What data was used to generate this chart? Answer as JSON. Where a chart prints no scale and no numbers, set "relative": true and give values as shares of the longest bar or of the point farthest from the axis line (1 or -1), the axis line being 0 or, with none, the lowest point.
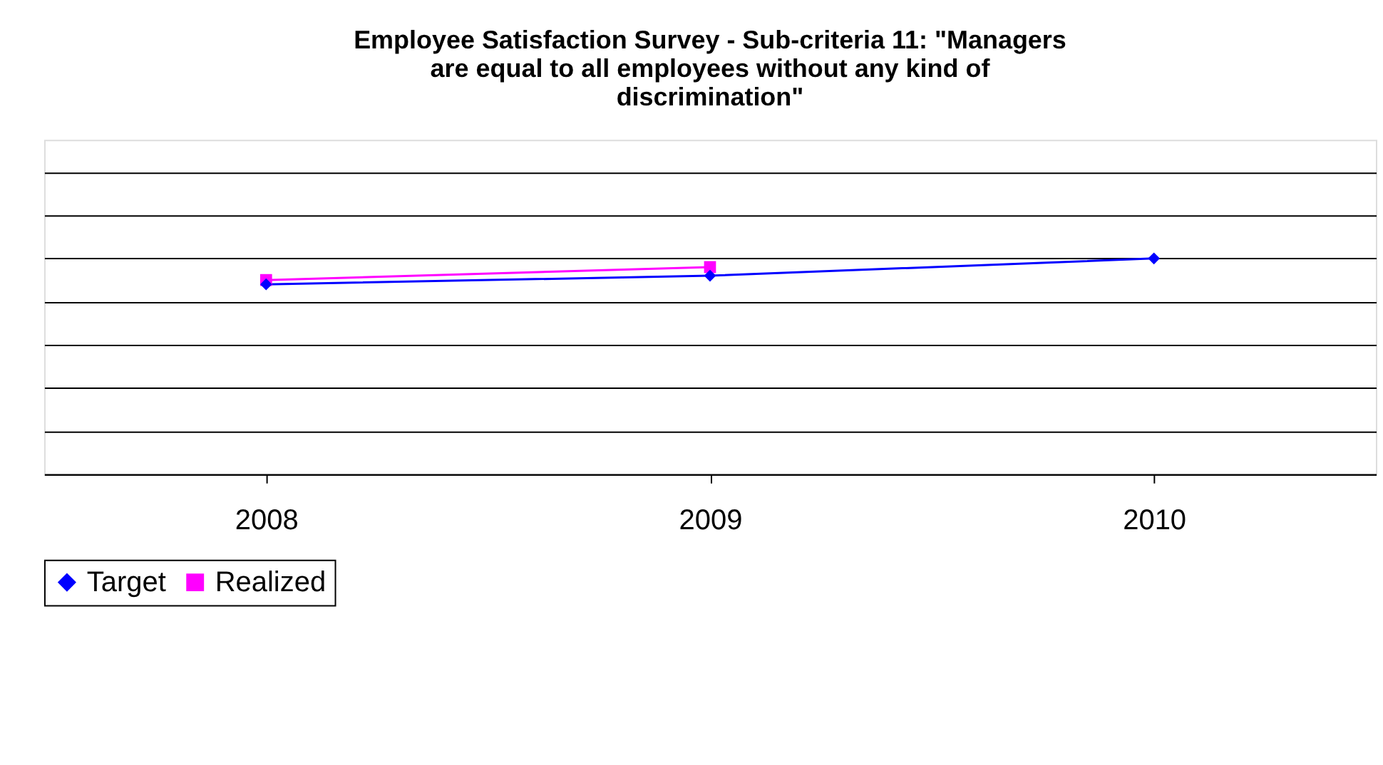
{
  "chart_data": {
    "type": "line",
    "title": "Employee Satisfaction Survey - Sub-criteria 11: \"Managers are equal to all employees without any kind of discrimination\"",
    "categories": [
      "2008",
      "2009",
      "2010"
    ],
    "relative": true,
    "grid": "y",
    "legend": "bottom",
    "marker": "diamond",
    "series": [
      {
        "name": "Target",
        "color": "#0000ff",
        "values": [
          0.88,
          0.92,
          1.0
        ],
        "marker": "diamond"
      },
      {
        "name": "Realized",
        "color": "#ff00ff",
        "values": [
          0.9,
          0.96,
          null
        ],
        "marker": "square"
      }
    ]
  }
}
